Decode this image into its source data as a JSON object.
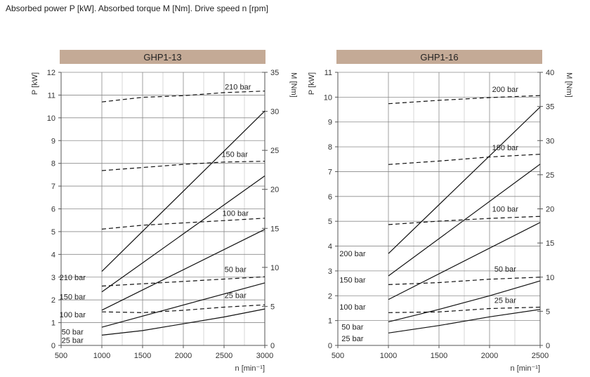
{
  "header": "Absorbed power P [kW].   Absorbed torque M [Nm].   Drive speed n [rpm]",
  "colors": {
    "title_band": "#c4aa96",
    "major_grid": "#8a8a8a",
    "minor_grid": "#bdbdbd",
    "line": "#111111"
  },
  "chart_data": [
    {
      "type": "line",
      "title": "GHP1-13",
      "xlabel": "n [min⁻¹]",
      "ylabel_left": "P [kW]",
      "ylabel_right": "M [Nm]",
      "xlim": [
        500,
        3000
      ],
      "ylim_left": [
        0,
        12
      ],
      "ylim_right": [
        0,
        35
      ],
      "x_ticks": [
        500,
        1000,
        1500,
        2000,
        2500,
        3000
      ],
      "y_ticks_left": [
        0,
        1,
        2,
        3,
        4,
        5,
        6,
        7,
        8,
        9,
        10,
        11,
        12
      ],
      "y_ticks_right": [
        0,
        5,
        10,
        15,
        20,
        25,
        30,
        35
      ],
      "power_series": [
        {
          "name": "210 bar",
          "points": [
            [
              1000,
              3.25
            ],
            [
              3000,
              10.3
            ]
          ]
        },
        {
          "name": "150 bar",
          "points": [
            [
              1000,
              2.35
            ],
            [
              3000,
              7.45
            ]
          ]
        },
        {
          "name": "100 bar",
          "points": [
            [
              1000,
              1.55
            ],
            [
              3000,
              5.1
            ]
          ]
        },
        {
          "name": "50 bar",
          "points": [
            [
              1000,
              0.8
            ],
            [
              3000,
              2.75
            ]
          ]
        },
        {
          "name": "25 bar",
          "points": [
            [
              1000,
              0.45
            ],
            [
              1500,
              0.65
            ],
            [
              2000,
              0.95
            ],
            [
              2500,
              1.25
            ],
            [
              3000,
              1.6
            ]
          ]
        }
      ],
      "torque_series": [
        {
          "name": "210 bar",
          "points": [
            [
              1000,
              31.2
            ],
            [
              1500,
              31.8
            ],
            [
              2000,
              32.0
            ],
            [
              2500,
              32.4
            ],
            [
              3000,
              32.6
            ]
          ]
        },
        {
          "name": "150 bar",
          "points": [
            [
              1000,
              22.4
            ],
            [
              1500,
              22.8
            ],
            [
              2000,
              23.2
            ],
            [
              2500,
              23.5
            ],
            [
              3000,
              23.6
            ]
          ]
        },
        {
          "name": "100 bar",
          "points": [
            [
              1000,
              14.9
            ],
            [
              1500,
              15.4
            ],
            [
              2000,
              15.7
            ],
            [
              2500,
              16.0
            ],
            [
              3000,
              16.3
            ]
          ]
        },
        {
          "name": "50 bar",
          "points": [
            [
              1000,
              7.6
            ],
            [
              1500,
              7.9
            ],
            [
              2000,
              8.2
            ],
            [
              2500,
              8.5
            ],
            [
              3000,
              8.8
            ]
          ]
        },
        {
          "name": "25 bar",
          "points": [
            [
              1000,
              4.3
            ],
            [
              1500,
              4.2
            ],
            [
              2000,
              4.5
            ],
            [
              2500,
              4.9
            ],
            [
              3000,
              5.2
            ]
          ]
        }
      ]
    },
    {
      "type": "line",
      "title": "GHP1-16",
      "xlabel": "n [min⁻¹]",
      "ylabel_left": "P [kW]",
      "ylabel_right": "M [Nm]",
      "xlim": [
        500,
        2500
      ],
      "ylim_left": [
        0,
        11
      ],
      "ylim_right": [
        0,
        40
      ],
      "x_ticks": [
        500,
        1000,
        1500,
        2000,
        2500
      ],
      "y_ticks_left": [
        0,
        1,
        2,
        3,
        4,
        5,
        6,
        7,
        8,
        9,
        10,
        11
      ],
      "y_ticks_right": [
        0,
        5,
        10,
        15,
        20,
        25,
        30,
        35,
        40
      ],
      "power_series": [
        {
          "name": "200 bar",
          "points": [
            [
              1000,
              3.7
            ],
            [
              2500,
              9.6
            ]
          ]
        },
        {
          "name": "150 bar",
          "points": [
            [
              1000,
              2.8
            ],
            [
              2500,
              7.3
            ]
          ]
        },
        {
          "name": "100 bar",
          "points": [
            [
              1000,
              1.85
            ],
            [
              2500,
              4.95
            ]
          ]
        },
        {
          "name": "50 bar",
          "points": [
            [
              1000,
              0.95
            ],
            [
              1500,
              1.45
            ],
            [
              2000,
              2.0
            ],
            [
              2500,
              2.6
            ]
          ]
        },
        {
          "name": "25 bar",
          "points": [
            [
              1000,
              0.5
            ],
            [
              1500,
              0.8
            ],
            [
              2000,
              1.15
            ],
            [
              2500,
              1.45
            ]
          ]
        }
      ],
      "torque_series": [
        {
          "name": "200 bar",
          "points": [
            [
              1000,
              35.4
            ],
            [
              1500,
              35.9
            ],
            [
              2000,
              36.3
            ],
            [
              2500,
              36.6
            ]
          ]
        },
        {
          "name": "150 bar",
          "points": [
            [
              1000,
              26.5
            ],
            [
              1500,
              27.0
            ],
            [
              2000,
              27.6
            ],
            [
              2500,
              28.0
            ]
          ]
        },
        {
          "name": "100 bar",
          "points": [
            [
              1000,
              17.7
            ],
            [
              1500,
              18.2
            ],
            [
              2000,
              18.6
            ],
            [
              2500,
              18.9
            ]
          ]
        },
        {
          "name": "50 bar",
          "points": [
            [
              1000,
              8.9
            ],
            [
              1500,
              9.2
            ],
            [
              2000,
              9.7
            ],
            [
              2500,
              10.0
            ]
          ]
        },
        {
          "name": "25 bar",
          "points": [
            [
              1000,
              4.8
            ],
            [
              1500,
              4.9
            ],
            [
              2000,
              5.4
            ],
            [
              2500,
              5.6
            ]
          ]
        }
      ]
    }
  ]
}
